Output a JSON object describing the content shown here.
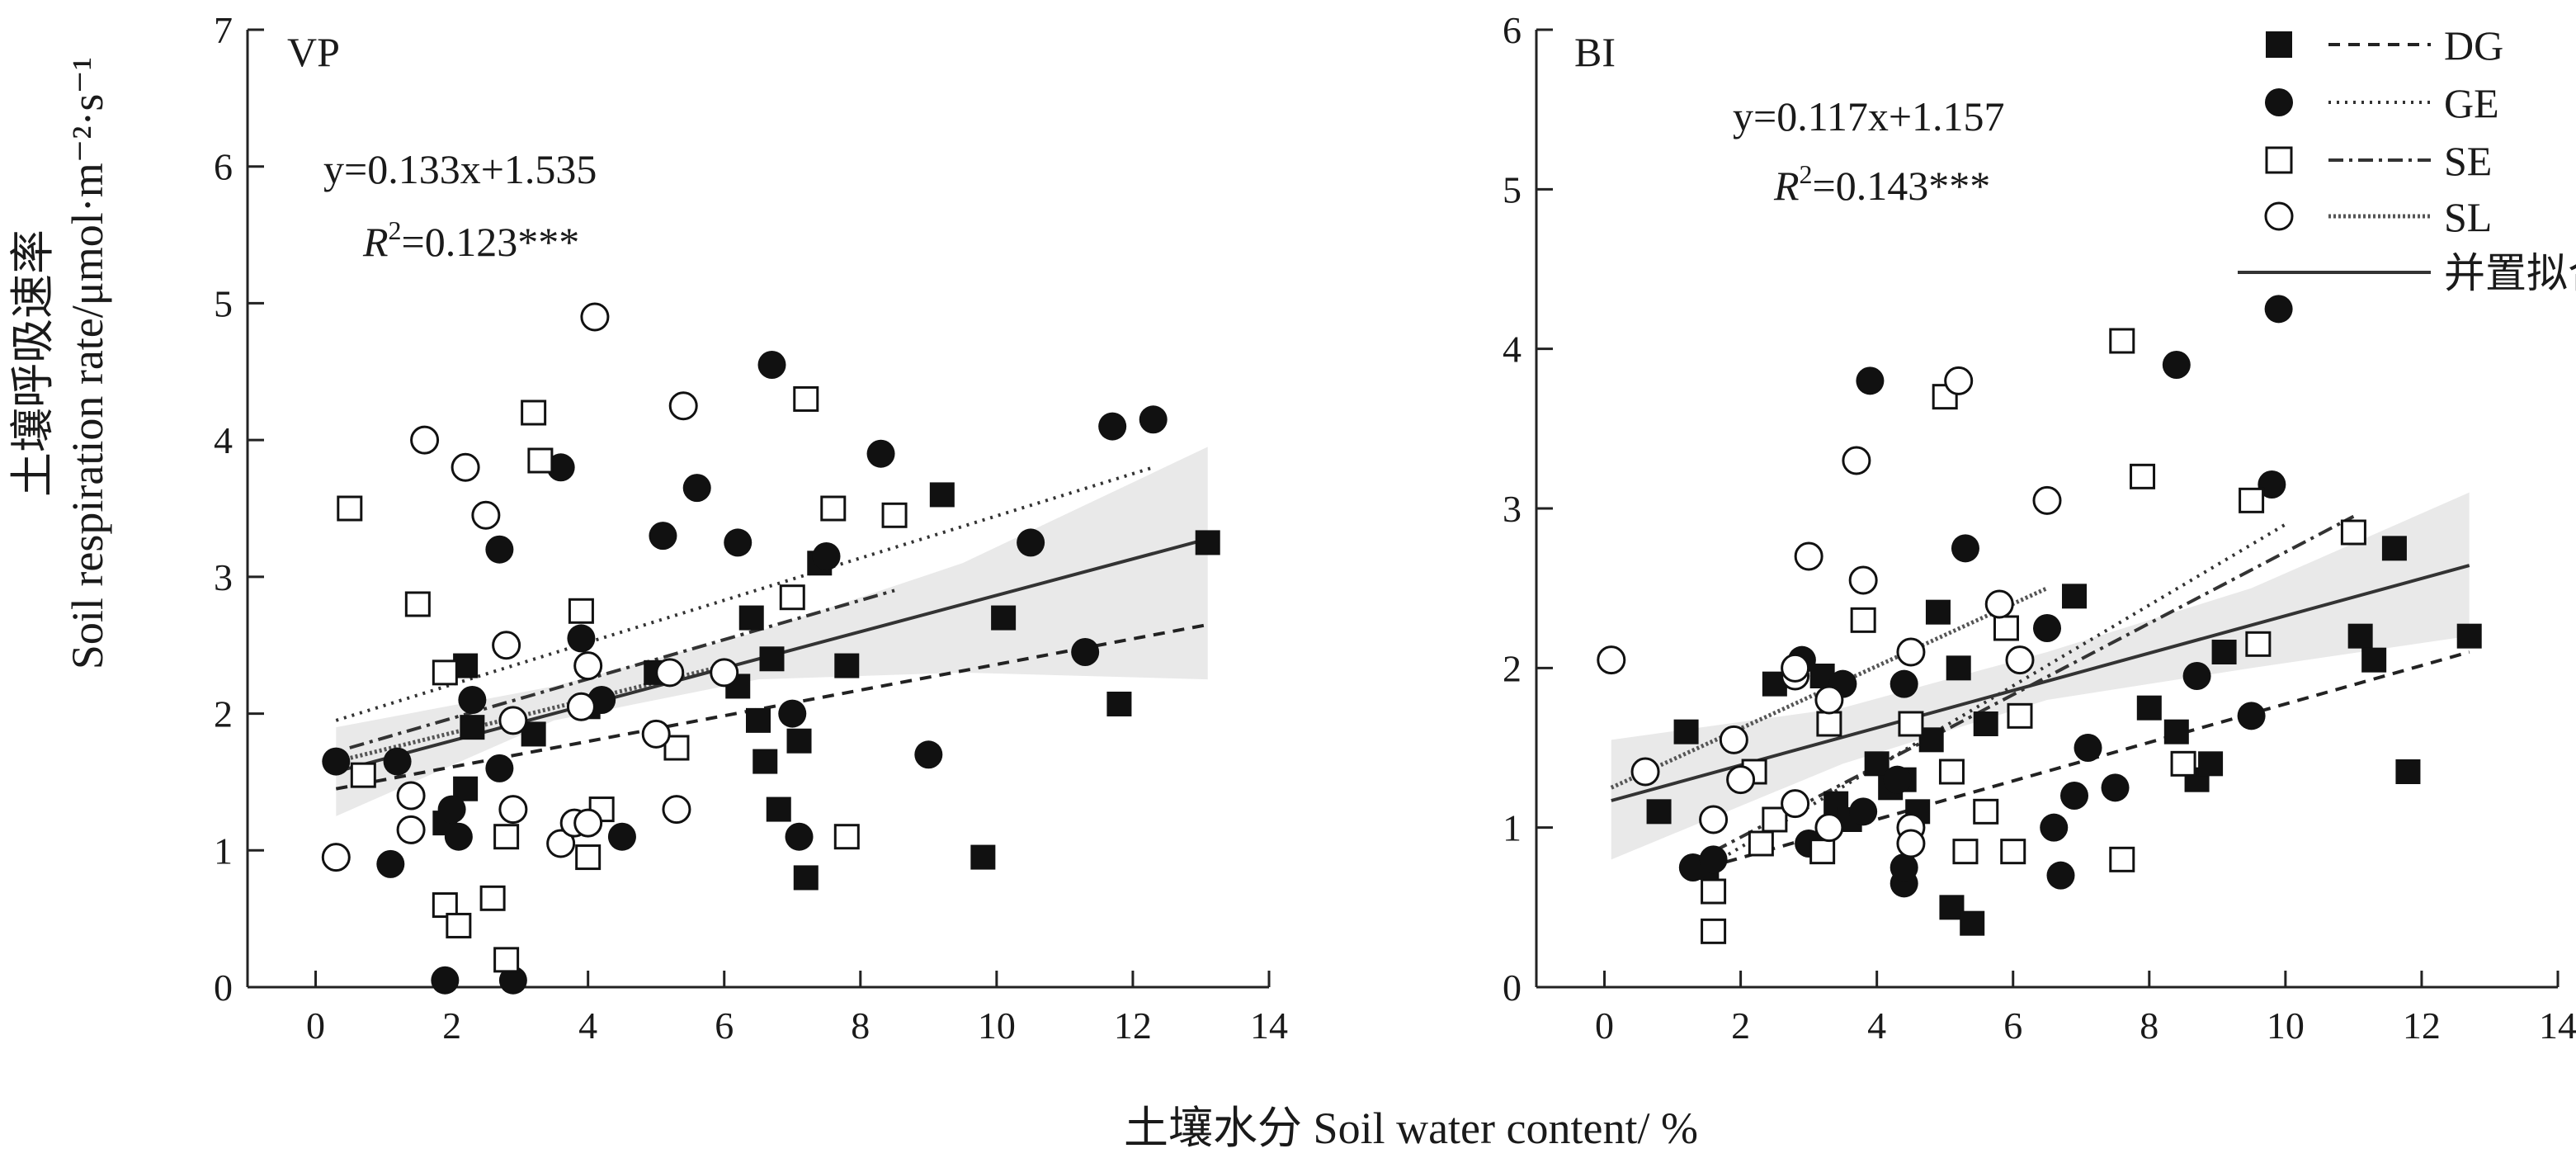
{
  "figure": {
    "xlabel": "土壤水分 Soil water content/ %",
    "ylabel_line1": "土壤呼吸速率",
    "ylabel_line2": "Soil respiration rate/μmol·m⁻²·s⁻¹"
  },
  "legend": {
    "items": [
      {
        "series": "DG",
        "label": "DG",
        "marker": "filled-square",
        "line": "dashed"
      },
      {
        "series": "GE",
        "label": "GE",
        "marker": "filled-circle",
        "line": "dotted"
      },
      {
        "series": "SE",
        "label": "SE",
        "marker": "open-square",
        "line": "dash-dot"
      },
      {
        "series": "SL",
        "label": "SL",
        "marker": "open-circle",
        "line": "dense-dot"
      },
      {
        "series": "pooled",
        "label": "并置拟合",
        "marker": "none",
        "line": "solid"
      }
    ]
  },
  "chart_data": [
    {
      "type": "scatter",
      "panel": "VP",
      "title": "VP",
      "equation": "y=0.133x+1.535",
      "r2_prefix": "R",
      "r2_sup": "2",
      "r2_value": "=0.123***",
      "xlim": [
        -1,
        14
      ],
      "ylim": [
        0,
        7
      ],
      "xticks": [
        0,
        2,
        4,
        6,
        8,
        10,
        12,
        14
      ],
      "yticks": [
        0,
        1,
        2,
        3,
        4,
        5,
        6,
        7
      ],
      "series": [
        {
          "name": "DG",
          "points": [
            [
              2.2,
              2.35
            ],
            [
              2.2,
              1.45
            ],
            [
              1.9,
              1.2
            ],
            [
              2.3,
              1.9
            ],
            [
              3.2,
              1.85
            ],
            [
              3.9,
              1.2
            ],
            [
              4.0,
              2.05
            ],
            [
              5.0,
              2.3
            ],
            [
              6.2,
              2.2
            ],
            [
              6.4,
              2.7
            ],
            [
              6.5,
              1.95
            ],
            [
              6.6,
              1.65
            ],
            [
              6.7,
              2.4
            ],
            [
              6.8,
              1.3
            ],
            [
              7.1,
              1.8
            ],
            [
              7.2,
              0.8
            ],
            [
              7.4,
              3.1
            ],
            [
              7.8,
              2.35
            ],
            [
              9.2,
              3.6
            ],
            [
              9.8,
              0.95
            ],
            [
              10.1,
              2.7
            ],
            [
              11.8,
              2.07
            ],
            [
              13.1,
              3.25
            ]
          ]
        },
        {
          "name": "GE",
          "points": [
            [
              0.3,
              1.65
            ],
            [
              1.1,
              0.9
            ],
            [
              1.2,
              1.65
            ],
            [
              2.0,
              1.3
            ],
            [
              2.1,
              1.1
            ],
            [
              2.3,
              2.1
            ],
            [
              2.7,
              1.6
            ],
            [
              2.7,
              3.2
            ],
            [
              3.6,
              3.8
            ],
            [
              3.9,
              2.55
            ],
            [
              4.2,
              2.1
            ],
            [
              4.5,
              1.1
            ],
            [
              5.1,
              3.3
            ],
            [
              5.6,
              3.65
            ],
            [
              6.2,
              3.25
            ],
            [
              6.7,
              4.55
            ],
            [
              7.0,
              2.0
            ],
            [
              7.1,
              1.1
            ],
            [
              7.5,
              3.15
            ],
            [
              8.3,
              3.9
            ],
            [
              9.0,
              1.7
            ],
            [
              10.5,
              3.25
            ],
            [
              11.3,
              2.45
            ],
            [
              11.7,
              4.1
            ],
            [
              12.3,
              4.15
            ],
            [
              1.9,
              0.05
            ],
            [
              2.9,
              0.05
            ]
          ]
        },
        {
          "name": "SE",
          "points": [
            [
              0.5,
              3.5
            ],
            [
              0.7,
              1.55
            ],
            [
              1.5,
              2.8
            ],
            [
              1.9,
              2.3
            ],
            [
              1.9,
              0.6
            ],
            [
              2.1,
              0.45
            ],
            [
              2.6,
              0.65
            ],
            [
              2.8,
              0.2
            ],
            [
              2.8,
              1.1
            ],
            [
              3.2,
              4.2
            ],
            [
              3.3,
              3.85
            ],
            [
              3.9,
              2.75
            ],
            [
              4.0,
              0.95
            ],
            [
              4.2,
              1.3
            ],
            [
              5.3,
              1.75
            ],
            [
              7.0,
              2.85
            ],
            [
              7.2,
              4.3
            ],
            [
              7.6,
              3.5
            ],
            [
              7.8,
              1.1
            ],
            [
              8.5,
              3.45
            ]
          ]
        },
        {
          "name": "SL",
          "points": [
            [
              0.3,
              0.95
            ],
            [
              1.4,
              1.4
            ],
            [
              1.4,
              1.15
            ],
            [
              1.6,
              4.0
            ],
            [
              2.2,
              3.8
            ],
            [
              2.5,
              3.45
            ],
            [
              2.8,
              2.5
            ],
            [
              2.9,
              1.3
            ],
            [
              2.9,
              1.95
            ],
            [
              3.6,
              1.05
            ],
            [
              3.8,
              1.2
            ],
            [
              3.9,
              2.05
            ],
            [
              4.0,
              1.2
            ],
            [
              4.0,
              2.35
            ],
            [
              4.1,
              4.9
            ],
            [
              5.0,
              1.85
            ],
            [
              5.2,
              2.3
            ],
            [
              5.3,
              1.3
            ],
            [
              5.4,
              4.25
            ],
            [
              6.0,
              2.3
            ]
          ]
        }
      ],
      "fits": [
        {
          "name": "DG",
          "x": [
            0.3,
            13.1
          ],
          "y": [
            1.45,
            2.65
          ]
        },
        {
          "name": "GE",
          "x": [
            0.3,
            12.3
          ],
          "y": [
            1.95,
            3.8
          ]
        },
        {
          "name": "SE",
          "x": [
            0.5,
            8.5
          ],
          "y": [
            1.75,
            2.9
          ]
        },
        {
          "name": "SL",
          "x": [
            0.3,
            6.0
          ],
          "y": [
            1.65,
            2.35
          ]
        },
        {
          "name": "pooled",
          "x": [
            0.3,
            13.1
          ],
          "y": [
            1.575,
            3.277
          ]
        }
      ],
      "confidence_band": {
        "x": [
          0.3,
          3.5,
          6.5,
          9.5,
          13.1
        ],
        "lower": [
          1.25,
          1.95,
          2.25,
          2.3,
          2.25
        ],
        "upper": [
          1.9,
          2.2,
          2.6,
          3.1,
          3.95
        ]
      }
    },
    {
      "type": "scatter",
      "panel": "BI",
      "title": "BI",
      "equation": "y=0.117x+1.157",
      "r2_prefix": "R",
      "r2_sup": "2",
      "r2_value": "=0.143***",
      "xlim": [
        -1,
        14
      ],
      "ylim": [
        0,
        6
      ],
      "xticks": [
        0,
        2,
        4,
        6,
        8,
        10,
        12,
        14
      ],
      "yticks": [
        0,
        1,
        2,
        3,
        4,
        5,
        6
      ],
      "series": [
        {
          "name": "DG",
          "points": [
            [
              0.8,
              1.1
            ],
            [
              1.2,
              1.6
            ],
            [
              1.5,
              0.75
            ],
            [
              2.5,
              1.9
            ],
            [
              3.2,
              1.95
            ],
            [
              3.4,
              1.15
            ],
            [
              3.6,
              1.05
            ],
            [
              3.8,
              2.3
            ],
            [
              4.0,
              1.4
            ],
            [
              4.2,
              1.25
            ],
            [
              4.4,
              1.3
            ],
            [
              4.6,
              1.1
            ],
            [
              4.8,
              1.55
            ],
            [
              4.9,
              2.35
            ],
            [
              5.1,
              0.5
            ],
            [
              5.2,
              2.0
            ],
            [
              5.4,
              0.4
            ],
            [
              5.6,
              1.65
            ],
            [
              6.9,
              2.45
            ],
            [
              8.0,
              1.75
            ],
            [
              8.4,
              1.6
            ],
            [
              8.7,
              1.3
            ],
            [
              8.9,
              1.4
            ],
            [
              9.1,
              2.1
            ],
            [
              11.1,
              2.2
            ],
            [
              11.3,
              2.05
            ],
            [
              11.6,
              2.75
            ],
            [
              11.8,
              1.35
            ],
            [
              12.7,
              2.2
            ]
          ]
        },
        {
          "name": "GE",
          "points": [
            [
              1.3,
              0.75
            ],
            [
              1.6,
              0.8
            ],
            [
              2.9,
              2.05
            ],
            [
              3.0,
              0.9
            ],
            [
              3.5,
              1.9
            ],
            [
              3.8,
              1.1
            ],
            [
              3.9,
              3.8
            ],
            [
              4.3,
              1.3
            ],
            [
              4.4,
              0.65
            ],
            [
              4.4,
              0.75
            ],
            [
              4.4,
              1.9
            ],
            [
              5.3,
              2.75
            ],
            [
              6.5,
              2.25
            ],
            [
              6.6,
              1.0
            ],
            [
              6.7,
              0.7
            ],
            [
              6.9,
              1.2
            ],
            [
              7.1,
              1.5
            ],
            [
              7.5,
              1.25
            ],
            [
              8.4,
              3.9
            ],
            [
              8.7,
              1.95
            ],
            [
              9.5,
              1.7
            ],
            [
              9.8,
              3.15
            ],
            [
              9.9,
              4.25
            ]
          ]
        },
        {
          "name": "SE",
          "points": [
            [
              1.6,
              0.6
            ],
            [
              1.6,
              0.35
            ],
            [
              2.2,
              1.35
            ],
            [
              2.3,
              0.9
            ],
            [
              2.5,
              1.05
            ],
            [
              3.2,
              0.85
            ],
            [
              3.3,
              1.65
            ],
            [
              3.8,
              2.3
            ],
            [
              4.5,
              1.65
            ],
            [
              5.0,
              3.7
            ],
            [
              5.1,
              1.35
            ],
            [
              5.3,
              0.85
            ],
            [
              5.6,
              1.1
            ],
            [
              5.9,
              2.25
            ],
            [
              6.0,
              0.85
            ],
            [
              6.1,
              1.7
            ],
            [
              7.6,
              4.05
            ],
            [
              7.6,
              0.8
            ],
            [
              7.9,
              3.2
            ],
            [
              8.5,
              1.4
            ],
            [
              9.5,
              3.05
            ],
            [
              9.6,
              2.15
            ],
            [
              11.0,
              2.85
            ]
          ]
        },
        {
          "name": "SL",
          "points": [
            [
              0.1,
              2.05
            ],
            [
              0.6,
              1.35
            ],
            [
              1.6,
              1.05
            ],
            [
              1.9,
              1.55
            ],
            [
              2.0,
              1.3
            ],
            [
              2.8,
              1.95
            ],
            [
              2.8,
              2.0
            ],
            [
              2.8,
              1.15
            ],
            [
              3.0,
              2.7
            ],
            [
              3.3,
              1.0
            ],
            [
              3.3,
              1.8
            ],
            [
              3.7,
              3.3
            ],
            [
              3.8,
              2.55
            ],
            [
              4.5,
              1.0
            ],
            [
              4.5,
              0.9
            ],
            [
              4.5,
              2.1
            ],
            [
              5.2,
              3.8
            ],
            [
              5.8,
              2.4
            ],
            [
              6.1,
              2.05
            ],
            [
              6.5,
              3.05
            ]
          ]
        }
      ],
      "fits": [
        {
          "name": "DG",
          "x": [
            1.5,
            12.7
          ],
          "y": [
            0.75,
            2.1
          ]
        },
        {
          "name": "GE",
          "x": [
            1.3,
            10.0
          ],
          "y": [
            0.7,
            2.9
          ]
        },
        {
          "name": "SE",
          "x": [
            1.6,
            11.0
          ],
          "y": [
            0.85,
            2.95
          ]
        },
        {
          "name": "SL",
          "x": [
            0.1,
            6.5
          ],
          "y": [
            1.25,
            2.5
          ]
        },
        {
          "name": "pooled",
          "x": [
            0.1,
            12.7
          ],
          "y": [
            1.169,
            2.643
          ]
        }
      ],
      "confidence_band": {
        "x": [
          0.1,
          3.5,
          6.5,
          9.5,
          12.7
        ],
        "lower": [
          0.8,
          1.4,
          1.8,
          2.0,
          2.2
        ],
        "upper": [
          1.55,
          1.75,
          2.1,
          2.5,
          3.1
        ]
      }
    }
  ]
}
